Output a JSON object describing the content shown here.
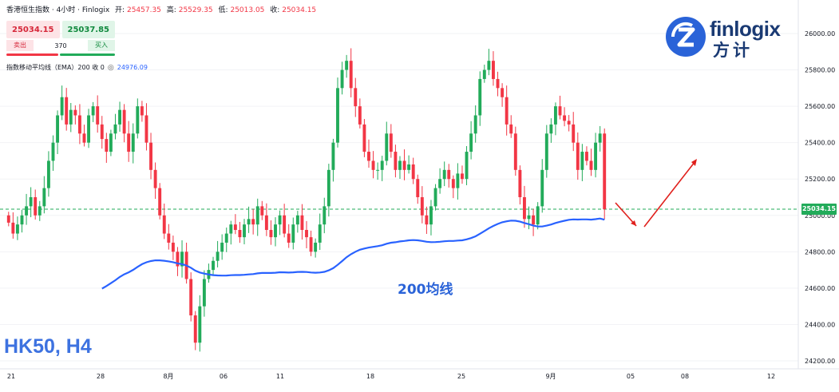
{
  "header": {
    "symbol_name": "香港恒生指数 · 4小时 · Finlogix",
    "open_label": "开:",
    "open_value": "25457.35",
    "high_label": "高:",
    "high_value": "25529.35",
    "low_label": "低:",
    "low_value": "25013.05",
    "close_label": "收:",
    "close_value": "25034.15"
  },
  "trade_panel": {
    "sell_price": "25034.15",
    "buy_price": "25037.85",
    "sell_label": "卖出",
    "buy_label": "买入",
    "spread": "370"
  },
  "indicator": {
    "name": "指数移动平均线（EMA）200 收 0",
    "value": "24976.09",
    "eye_icon": "eye-icon"
  },
  "logo": {
    "brand": "finlogix",
    "brand_cn": "方计",
    "mark_icon": "finlogix-z-logo-icon"
  },
  "symbol_label": "HK50, H4",
  "ema_annotation": "200均线",
  "last_price_tag": "25034.15",
  "colors": {
    "up": "#22ab5a",
    "down": "#f23645",
    "ema": "#2962ff",
    "arrow": "#e0201c",
    "brand": "#1a3a73",
    "label": "#3d72e0"
  },
  "chart_data": {
    "type": "candlestick",
    "y_axis": {
      "ticks": [
        24200,
        24400,
        24600,
        24800,
        25000,
        25200,
        25400,
        25600,
        25800,
        26000
      ],
      "tick_labels": [
        "24200.00",
        "24400.00",
        "24600.00",
        "24800.00",
        "25000.00",
        "25200.00",
        "25400.00",
        "25600.00",
        "25800.00",
        "26000.00"
      ],
      "range": [
        24180,
        26100
      ]
    },
    "x_axis": {
      "tick_labels": [
        "21",
        "28",
        "8月",
        "06",
        "11",
        "18",
        "25",
        "9月",
        "05",
        "08",
        "12"
      ]
    },
    "last_price": 25034.15,
    "ema_period": 200,
    "ema_last": 24976.09,
    "candle_closes": [
      24960,
      24900,
      24950,
      25000,
      25050,
      25100,
      25000,
      25050,
      25150,
      25300,
      25400,
      25550,
      25650,
      25500,
      25580,
      25550,
      25450,
      25400,
      25550,
      25600,
      25500,
      25420,
      25350,
      25450,
      25500,
      25580,
      25450,
      25350,
      25450,
      25600,
      25550,
      25400,
      25250,
      25150,
      25000,
      24900,
      24850,
      24800,
      24720,
      24800,
      24650,
      24450,
      24300,
      24500,
      24650,
      24700,
      24750,
      24800,
      24850,
      24900,
      24950,
      24920,
      24880,
      24950,
      24980,
      24950,
      25050,
      25000,
      24920,
      24880,
      24950,
      25000,
      24900,
      24850,
      24950,
      25000,
      24920,
      24880,
      24800,
      24850,
      24950,
      25050,
      25250,
      25400,
      25700,
      25800,
      25850,
      25700,
      25600,
      25500,
      25350,
      25300,
      25250,
      25250,
      25300,
      25450,
      25350,
      25250,
      25300,
      25250,
      25280,
      25200,
      25100,
      25000,
      24950,
      25050,
      25150,
      25200,
      25250,
      25200,
      25150,
      25230,
      25200,
      25350,
      25450,
      25550,
      25750,
      25800,
      25850,
      25750,
      25700,
      25650,
      25500,
      25450,
      25250,
      25100,
      24980,
      25000,
      24950,
      25050,
      25250,
      25450,
      25500,
      25600,
      25550,
      25520,
      25500,
      25400,
      25250,
      25350,
      25300,
      25250,
      25400,
      25450,
      25034
    ]
  }
}
